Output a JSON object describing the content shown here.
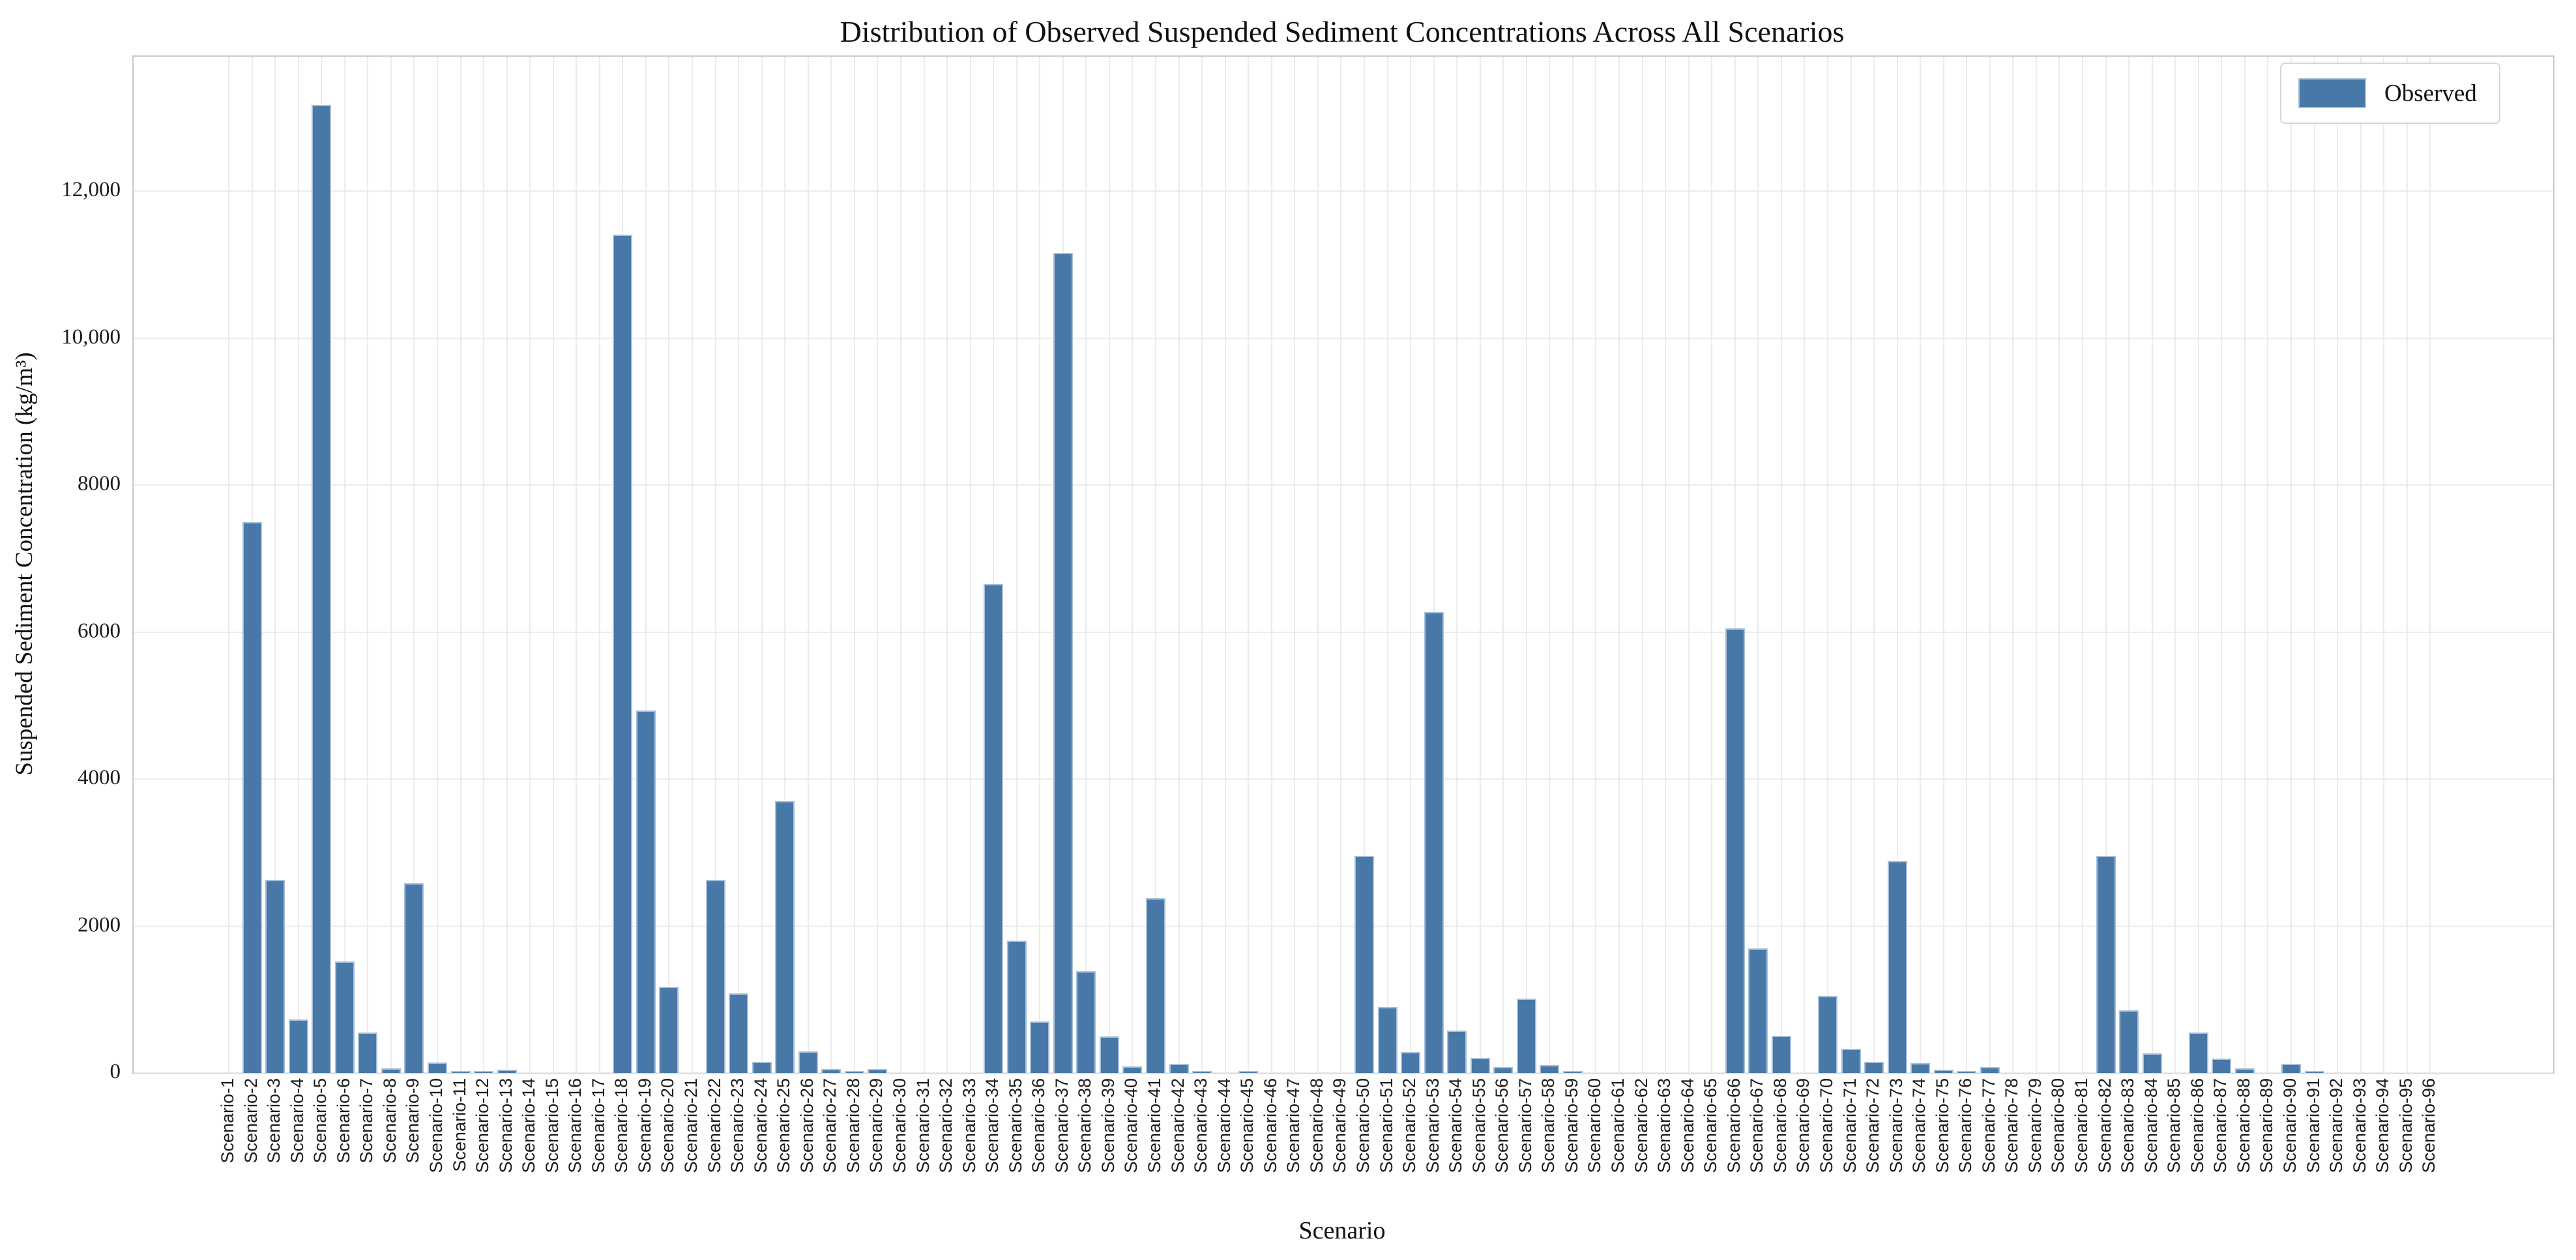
{
  "title": "Distribution of Observed Suspended Sediment Concentrations Across All Scenarios",
  "legend": {
    "label": "Observed"
  },
  "colors": {
    "bar_fill": "#4878a8",
    "bar_edge": "#a7c0da",
    "grid": "#ebebeb",
    "spine": "#c9c9c9",
    "text": "#111111"
  },
  "chart_data": {
    "type": "bar",
    "title": "Distribution of Observed Suspended Sediment Concentrations Across All Scenarios",
    "xlabel": "Scenario",
    "ylabel": "Suspended Sediment Concentration (kg/m³)",
    "series_name": "Observed",
    "legend_position": "upper right",
    "grid": true,
    "ylim": [
      0,
      13830
    ],
    "yticks": [
      0,
      2000,
      4000,
      6000,
      8000,
      10000,
      12000
    ],
    "ytick_labels": [
      "0",
      "2000",
      "4000",
      "6000",
      "8000",
      "10,000",
      "12,000"
    ],
    "categories": [
      "Scenario-1",
      "Scenario-2",
      "Scenario-3",
      "Scenario-4",
      "Scenario-5",
      "Scenario-6",
      "Scenario-7",
      "Scenario-8",
      "Scenario-9",
      "Scenario-10",
      "Scenario-11",
      "Scenario-12",
      "Scenario-13",
      "Scenario-14",
      "Scenario-15",
      "Scenario-16",
      "Scenario-17",
      "Scenario-18",
      "Scenario-19",
      "Scenario-20",
      "Scenario-21",
      "Scenario-22",
      "Scenario-23",
      "Scenario-24",
      "Scenario-25",
      "Scenario-26",
      "Scenario-27",
      "Scenario-28",
      "Scenario-29",
      "Scenario-30",
      "Scenario-31",
      "Scenario-32",
      "Scenario-33",
      "Scenario-34",
      "Scenario-35",
      "Scenario-36",
      "Scenario-37",
      "Scenario-38",
      "Scenario-39",
      "Scenario-40",
      "Scenario-41",
      "Scenario-42",
      "Scenario-43",
      "Scenario-44",
      "Scenario-45",
      "Scenario-46",
      "Scenario-47",
      "Scenario-48",
      "Scenario-49",
      "Scenario-50",
      "Scenario-51",
      "Scenario-52",
      "Scenario-53",
      "Scenario-54",
      "Scenario-55",
      "Scenario-56",
      "Scenario-57",
      "Scenario-58",
      "Scenario-59",
      "Scenario-60",
      "Scenario-61",
      "Scenario-62",
      "Scenario-63",
      "Scenario-64",
      "Scenario-65",
      "Scenario-66",
      "Scenario-67",
      "Scenario-68",
      "Scenario-69",
      "Scenario-70",
      "Scenario-71",
      "Scenario-72",
      "Scenario-73",
      "Scenario-74",
      "Scenario-75",
      "Scenario-76",
      "Scenario-77",
      "Scenario-78",
      "Scenario-79",
      "Scenario-80",
      "Scenario-81",
      "Scenario-82",
      "Scenario-83",
      "Scenario-84",
      "Scenario-85",
      "Scenario-86",
      "Scenario-87",
      "Scenario-88",
      "Scenario-89",
      "Scenario-90",
      "Scenario-91",
      "Scenario-92",
      "Scenario-93",
      "Scenario-94",
      "Scenario-95",
      "Scenario-96"
    ],
    "values": [
      0,
      7500,
      2630,
      730,
      13170,
      1520,
      550,
      65,
      2580,
      145,
      30,
      15,
      40,
      0,
      0,
      0,
      0,
      11410,
      4930,
      1170,
      0,
      2630,
      1080,
      150,
      3700,
      290,
      50,
      15,
      50,
      0,
      0,
      0,
      0,
      6650,
      1800,
      700,
      11160,
      1380,
      500,
      90,
      2380,
      120,
      30,
      0,
      30,
      0,
      0,
      0,
      0,
      2950,
      900,
      280,
      6270,
      580,
      200,
      80,
      1010,
      110,
      25,
      0,
      0,
      0,
      0,
      0,
      0,
      6050,
      1690,
      510,
      0,
      1050,
      330,
      150,
      2880,
      130,
      40,
      10,
      80,
      0,
      0,
      0,
      0,
      2950,
      850,
      270,
      0,
      550,
      195,
      60,
      0,
      120,
      15,
      0,
      0,
      0,
      0,
      0
    ]
  }
}
